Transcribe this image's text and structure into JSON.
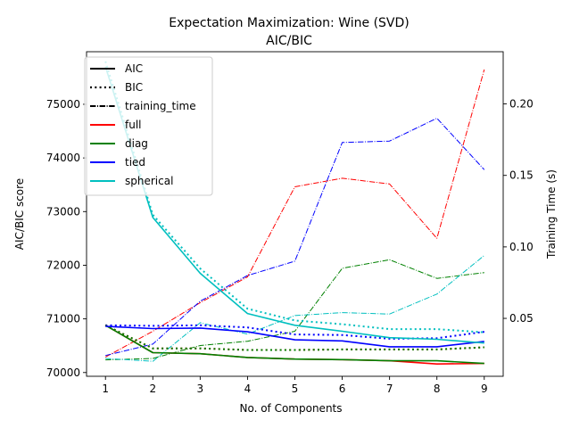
{
  "chart_data": {
    "type": "line",
    "title": "Expectation Maximization: Wine (SVD)",
    "subtitle": "AIC/BIC",
    "xlabel": "No. of Components",
    "ylabel": "AIC/BIC score",
    "y2label": "Training Time (s)",
    "x": [
      1,
      2,
      3,
      4,
      5,
      6,
      7,
      8,
      9
    ],
    "xlim": [
      0.6,
      9.4
    ],
    "ylim": [
      69930,
      75980
    ],
    "y2lim": [
      0.0095,
      0.2365
    ],
    "xticks": [
      "1",
      "2",
      "3",
      "4",
      "5",
      "6",
      "7",
      "8",
      "9"
    ],
    "yticks": [
      70000,
      71000,
      72000,
      73000,
      74000,
      75000
    ],
    "yticklabels": [
      "70000",
      "71000",
      "72000",
      "73000",
      "74000",
      "75000"
    ],
    "y2ticks": [
      0.05,
      0.1,
      0.15,
      0.2
    ],
    "y2ticklabels": [
      "0.05",
      "0.10",
      "0.15",
      "0.20"
    ],
    "grid": false,
    "legend": {
      "placement": "upper-left",
      "style_entries": [
        {
          "label": "AIC",
          "dash": "solid"
        },
        {
          "label": "BIC",
          "dash": "dotted"
        },
        {
          "label": "training_time",
          "dash": "dashdot"
        }
      ],
      "color_entries": [
        {
          "label": "full",
          "color": "#ff0000"
        },
        {
          "label": "diag",
          "color": "#008000"
        },
        {
          "label": "tied",
          "color": "#0000ff"
        },
        {
          "label": "spherical",
          "color": "#00bfbf"
        }
      ]
    },
    "series": [
      {
        "name": "full",
        "metric": "AIC",
        "axis": "left",
        "color": "#ff0000",
        "dash": "solid",
        "values": [
          70880,
          70370,
          70350,
          70280,
          70250,
          70240,
          70220,
          70160,
          70170
        ]
      },
      {
        "name": "full",
        "metric": "BIC",
        "axis": "left",
        "color": "#ff0000",
        "dash": "dotted",
        "values": [
          70880,
          70450,
          70450,
          70420,
          70420,
          70430,
          70430,
          70430,
          70470
        ]
      },
      {
        "name": "full",
        "metric": "training_time",
        "axis": "right",
        "color": "#ff0000",
        "dash": "dashdot",
        "values": [
          0.023,
          0.041,
          0.061,
          0.079,
          0.142,
          0.148,
          0.144,
          0.106,
          0.224
        ]
      },
      {
        "name": "diag",
        "metric": "AIC",
        "axis": "left",
        "color": "#008000",
        "dash": "solid",
        "values": [
          70880,
          70370,
          70350,
          70280,
          70250,
          70240,
          70220,
          70220,
          70170
        ]
      },
      {
        "name": "diag",
        "metric": "BIC",
        "axis": "left",
        "color": "#008000",
        "dash": "dotted",
        "values": [
          70880,
          70450,
          70450,
          70420,
          70420,
          70430,
          70430,
          70430,
          70470
        ]
      },
      {
        "name": "diag",
        "metric": "training_time",
        "axis": "right",
        "color": "#008000",
        "dash": "dashdot",
        "values": [
          0.021,
          0.022,
          0.031,
          0.034,
          0.041,
          0.085,
          0.091,
          0.078,
          0.082
        ]
      },
      {
        "name": "tied",
        "metric": "AIC",
        "axis": "left",
        "color": "#0000ff",
        "dash": "solid",
        "values": [
          70860,
          70820,
          70830,
          70760,
          70610,
          70590,
          70480,
          70480,
          70580
        ]
      },
      {
        "name": "tied",
        "metric": "BIC",
        "axis": "left",
        "color": "#0000ff",
        "dash": "dotted",
        "values": [
          70880,
          70870,
          70880,
          70840,
          70710,
          70700,
          70630,
          70640,
          70760
        ]
      },
      {
        "name": "tied",
        "metric": "training_time",
        "axis": "right",
        "color": "#0000ff",
        "dash": "dashdot",
        "values": [
          0.024,
          0.032,
          0.062,
          0.08,
          0.09,
          0.173,
          0.174,
          0.19,
          0.154
        ]
      },
      {
        "name": "spherical",
        "metric": "AIC",
        "axis": "left",
        "color": "#00bfbf",
        "dash": "solid",
        "values": [
          75700,
          72890,
          71850,
          71100,
          70880,
          70770,
          70650,
          70620,
          70550
        ]
      },
      {
        "name": "spherical",
        "metric": "BIC",
        "axis": "left",
        "color": "#00bfbf",
        "dash": "dotted",
        "values": [
          75800,
          72940,
          71940,
          71190,
          70970,
          70900,
          70810,
          70810,
          70750
        ]
      },
      {
        "name": "spherical",
        "metric": "training_time",
        "axis": "right",
        "color": "#00bfbf",
        "dash": "dashdot",
        "values": [
          0.022,
          0.02,
          0.047,
          0.039,
          0.052,
          0.054,
          0.053,
          0.067,
          0.094
        ]
      }
    ]
  }
}
